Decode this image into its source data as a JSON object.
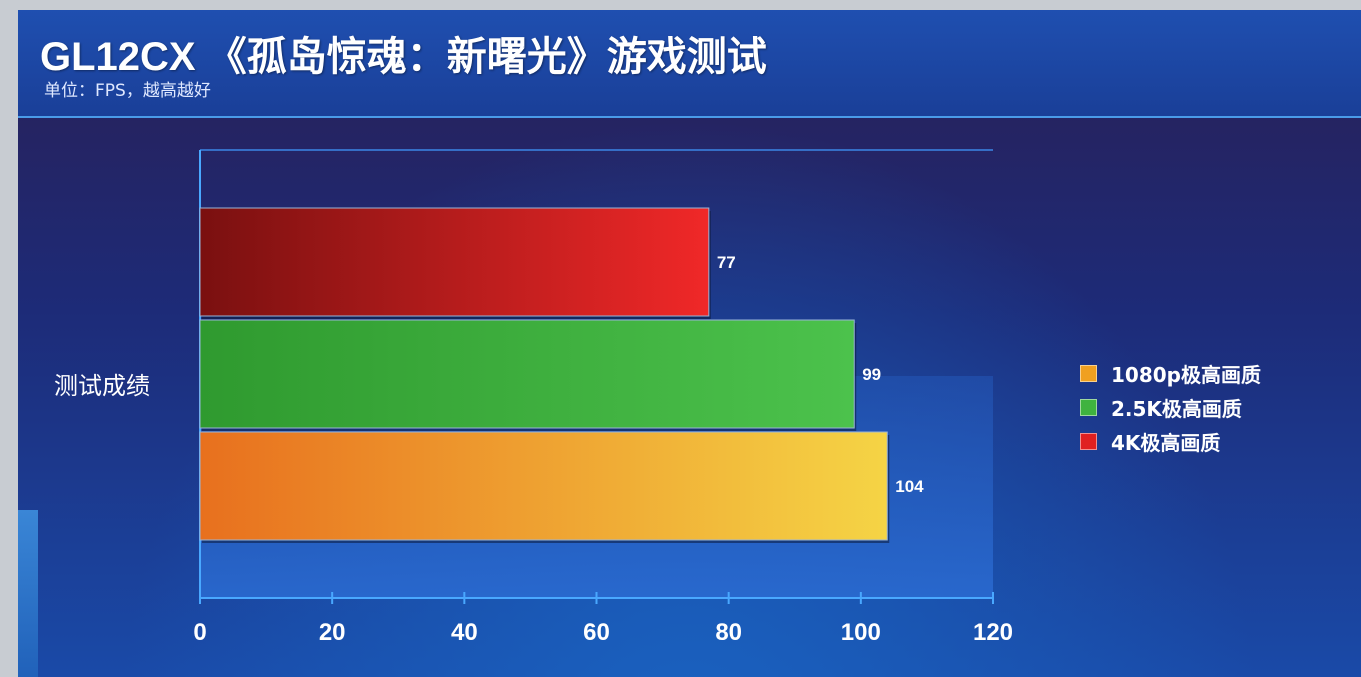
{
  "header": {
    "title": "GL12CX 《孤岛惊魂：新曙光》游戏测试",
    "subtitle": "单位：FPS，越高越好"
  },
  "chart_data": {
    "type": "bar",
    "orientation": "horizontal",
    "categories": [
      "测试成绩"
    ],
    "series": [
      {
        "name": "1080p极高画质",
        "values": [
          104
        ],
        "color": "#f0a020"
      },
      {
        "name": "2.5K极高画质",
        "values": [
          99
        ],
        "color": "#3fb33f"
      },
      {
        "name": "4K极高画质",
        "values": [
          77
        ],
        "color": "#e02020"
      }
    ],
    "xlim": [
      0,
      120
    ],
    "xticks": [
      0,
      20,
      40,
      60,
      80,
      100,
      120
    ],
    "xlabel": "",
    "ylabel": "",
    "grid": false,
    "legend_position": "right"
  }
}
